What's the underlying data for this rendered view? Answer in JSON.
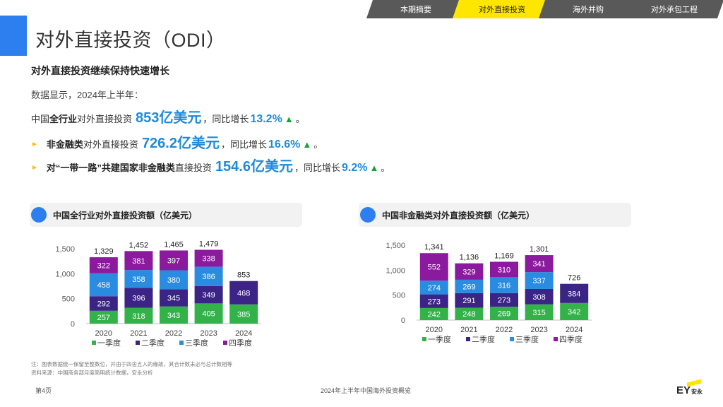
{
  "nav": {
    "tabs": [
      {
        "label": "本期摘要",
        "active": false
      },
      {
        "label": "对外直接投资",
        "active": true
      },
      {
        "label": "海外并购",
        "active": false
      },
      {
        "label": "对外承包工程",
        "active": false
      }
    ]
  },
  "page_title": "对外直接投资（ODI）",
  "subtitle": "对外直接投资继续保持快速增长",
  "intro": "数据显示，2024年上半年：",
  "stats": [
    {
      "prefix_a": "中国",
      "bold_a": "全行业",
      "prefix_b": "对外直接投资",
      "value": "853亿美元",
      "mid": "，同比增长",
      "pct": "13.2%",
      "arrow": "▲",
      "end": "。"
    },
    {
      "bold_a": "非金融类",
      "prefix_b": "对外直接投资",
      "value": "726.2亿美元",
      "mid": "，同比增长",
      "pct": "16.6%",
      "arrow": "▲",
      "end": "。"
    },
    {
      "bold_a": "对“一带一路”共建国家非金融类",
      "prefix_b": "直接投资",
      "value": "154.6亿美元",
      "mid": "，同比增长",
      "pct": "9.2%",
      "arrow": "▲",
      "end": "。"
    }
  ],
  "bullet_glyph": "►",
  "colors": {
    "q1": "#33b24a",
    "q2": "#3b2485",
    "q3": "#2a8ce0",
    "q4": "#8b1a9e",
    "accent": "#2d7ff0",
    "yellow": "#ffe600"
  },
  "chart_data": [
    {
      "type": "bar",
      "title": "中国全行业对外直接投资额（亿美元）",
      "categories": [
        "2020",
        "2021",
        "2022",
        "2023",
        "2024"
      ],
      "series": [
        {
          "name": "一季度",
          "values": [
            257,
            318,
            343,
            405,
            385
          ]
        },
        {
          "name": "二季度",
          "values": [
            292,
            396,
            345,
            349,
            468
          ]
        },
        {
          "name": "三季度",
          "values": [
            458,
            358,
            380,
            386,
            null
          ]
        },
        {
          "name": "四季度",
          "values": [
            322,
            381,
            397,
            338,
            null
          ]
        }
      ],
      "totals": [
        "1,329",
        "1,452",
        "1,465",
        "1,479",
        "853"
      ],
      "yticks": [
        0,
        500,
        1000,
        1500
      ],
      "ytick_labels": [
        "0",
        "500",
        "1,000",
        "1,500"
      ],
      "ylim": [
        0,
        1500
      ],
      "stacked": true,
      "legend_position": "bottom"
    },
    {
      "type": "bar",
      "title": "中国非金融类对外直接投资额（亿美元）",
      "categories": [
        "2020",
        "2021",
        "2022",
        "2023",
        "2024"
      ],
      "series": [
        {
          "name": "一季度",
          "values": [
            242,
            248,
            269,
            315,
            342
          ]
        },
        {
          "name": "二季度",
          "values": [
            273,
            291,
            273,
            308,
            384
          ]
        },
        {
          "name": "三季度",
          "values": [
            274,
            269,
            316,
            337,
            null
          ]
        },
        {
          "name": "四季度",
          "values": [
            552,
            329,
            310,
            341,
            null
          ]
        }
      ],
      "totals": [
        "1,341",
        "1,136",
        "1,169",
        "1,301",
        "726"
      ],
      "yticks": [
        0,
        500,
        1000,
        1500
      ],
      "ytick_labels": [
        "0",
        "500",
        "1,000",
        "1,500"
      ],
      "ylim": [
        0,
        1500
      ],
      "stacked": true,
      "legend_position": "bottom"
    }
  ],
  "notes": [
    "注：图表数据统一保留至整数位，并由于四舍五入的缘故，其合计数未必与总计数相等",
    "资料来源：中国商务部月度简明统计数据，安永分析"
  ],
  "footer": {
    "page": "第4页",
    "title": "2024年上半年中国海外投资概览",
    "logo_text": "EY",
    "logo_cn": "安永"
  }
}
